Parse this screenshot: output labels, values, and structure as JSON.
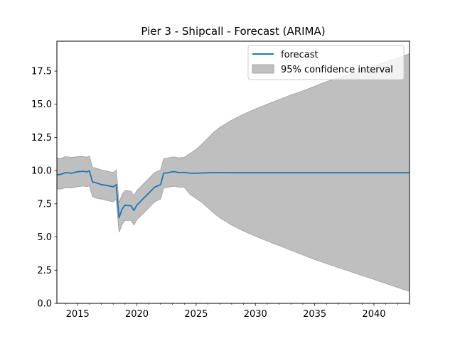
{
  "chart_data": {
    "type": "line",
    "title": "Pier 3 - Shipcall - Forecast (ARIMA)",
    "xlabel": "",
    "ylabel": "",
    "xlim": [
      2013.25,
      2043.0
    ],
    "ylim": [
      0.0,
      19.75
    ],
    "x_ticks": [
      2015,
      2020,
      2025,
      2030,
      2035,
      2040
    ],
    "x_tick_labels": [
      "2015",
      "2020",
      "2025",
      "2030",
      "2035",
      "2040"
    ],
    "y_ticks": [
      0.0,
      2.5,
      5.0,
      7.5,
      10.0,
      12.5,
      15.0,
      17.5
    ],
    "y_tick_labels": [
      "0.0",
      "2.5",
      "5.0",
      "7.5",
      "10.0",
      "12.5",
      "15.0",
      "17.5"
    ],
    "legend": {
      "position": "top-right",
      "entries": [
        "forecast",
        "95% confidence interval"
      ]
    },
    "colors": {
      "forecast": "#1f77b4",
      "confidence_interval": "#bfbfbf",
      "confidence_edge": "#a6a6a6"
    },
    "series": [
      {
        "name": "forecast",
        "points": [
          [
            2013.25,
            9.7
          ],
          [
            2013.5,
            9.7
          ],
          [
            2014.0,
            9.85
          ],
          [
            2014.5,
            9.8
          ],
          [
            2015.0,
            9.92
          ],
          [
            2015.5,
            9.95
          ],
          [
            2015.75,
            9.9
          ],
          [
            2016.0,
            9.98
          ],
          [
            2016.25,
            9.15
          ],
          [
            2016.5,
            9.1
          ],
          [
            2017.0,
            8.95
          ],
          [
            2017.5,
            8.88
          ],
          [
            2018.0,
            8.78
          ],
          [
            2018.25,
            8.95
          ],
          [
            2018.5,
            6.45
          ],
          [
            2018.75,
            7.1
          ],
          [
            2019.0,
            7.4
          ],
          [
            2019.5,
            7.35
          ],
          [
            2019.75,
            7.0
          ],
          [
            2020.0,
            7.4
          ],
          [
            2020.5,
            7.85
          ],
          [
            2021.0,
            8.3
          ],
          [
            2021.5,
            8.75
          ],
          [
            2022.0,
            8.95
          ],
          [
            2022.25,
            9.8
          ],
          [
            2022.5,
            9.82
          ],
          [
            2023.0,
            9.92
          ],
          [
            2023.25,
            9.92
          ],
          [
            2023.5,
            9.85
          ],
          [
            2024.0,
            9.87
          ],
          [
            2024.5,
            9.8
          ],
          [
            2025.0,
            9.8
          ],
          [
            2026.0,
            9.84
          ],
          [
            2027.0,
            9.85
          ],
          [
            2028.0,
            9.84
          ],
          [
            2030.0,
            9.84
          ],
          [
            2035.0,
            9.84
          ],
          [
            2040.0,
            9.84
          ],
          [
            2043.0,
            9.84
          ]
        ]
      },
      {
        "name": "95% confidence interval",
        "points": [
          [
            2013.25,
            8.65,
            10.95
          ],
          [
            2013.5,
            8.6,
            10.9
          ],
          [
            2014.0,
            8.72,
            11.05
          ],
          [
            2014.5,
            8.7,
            11.0
          ],
          [
            2015.0,
            8.8,
            11.05
          ],
          [
            2015.5,
            8.85,
            11.05
          ],
          [
            2015.75,
            8.8,
            11.0
          ],
          [
            2016.0,
            8.85,
            11.1
          ],
          [
            2016.25,
            8.05,
            10.25
          ],
          [
            2016.5,
            7.95,
            10.2
          ],
          [
            2017.0,
            7.85,
            10.05
          ],
          [
            2017.5,
            7.75,
            9.95
          ],
          [
            2018.0,
            7.65,
            9.85
          ],
          [
            2018.25,
            7.85,
            10.05
          ],
          [
            2018.5,
            5.35,
            7.55
          ],
          [
            2018.75,
            5.95,
            8.2
          ],
          [
            2019.0,
            6.25,
            8.5
          ],
          [
            2019.5,
            6.25,
            8.45
          ],
          [
            2019.75,
            5.9,
            8.1
          ],
          [
            2020.0,
            6.3,
            8.5
          ],
          [
            2020.5,
            6.75,
            8.95
          ],
          [
            2021.0,
            7.2,
            9.4
          ],
          [
            2021.5,
            7.65,
            9.85
          ],
          [
            2022.0,
            7.85,
            10.05
          ],
          [
            2022.25,
            8.7,
            10.9
          ],
          [
            2022.5,
            8.72,
            10.92
          ],
          [
            2023.0,
            8.82,
            11.02
          ],
          [
            2023.25,
            8.82,
            11.02
          ],
          [
            2023.5,
            8.75,
            10.95
          ],
          [
            2024.0,
            8.75,
            11.0
          ],
          [
            2024.5,
            8.2,
            11.3
          ],
          [
            2025.0,
            7.9,
            11.6
          ],
          [
            2025.5,
            7.6,
            12.0
          ],
          [
            2026.0,
            7.2,
            12.45
          ],
          [
            2026.5,
            6.8,
            12.9
          ],
          [
            2027.0,
            6.45,
            13.25
          ],
          [
            2028.0,
            5.9,
            13.8
          ],
          [
            2029.0,
            5.45,
            14.25
          ],
          [
            2030.0,
            5.05,
            14.65
          ],
          [
            2031.0,
            4.7,
            15.0
          ],
          [
            2032.0,
            4.35,
            15.35
          ],
          [
            2033.0,
            4.0,
            15.7
          ],
          [
            2034.0,
            3.65,
            16.0
          ],
          [
            2035.0,
            3.3,
            16.35
          ],
          [
            2036.0,
            3.0,
            16.7
          ],
          [
            2037.0,
            2.7,
            17.0
          ],
          [
            2038.0,
            2.4,
            17.3
          ],
          [
            2039.0,
            2.1,
            17.6
          ],
          [
            2040.0,
            1.8,
            17.9
          ],
          [
            2041.0,
            1.5,
            18.2
          ],
          [
            2042.0,
            1.2,
            18.5
          ],
          [
            2043.0,
            0.9,
            18.8
          ]
        ]
      }
    ]
  }
}
